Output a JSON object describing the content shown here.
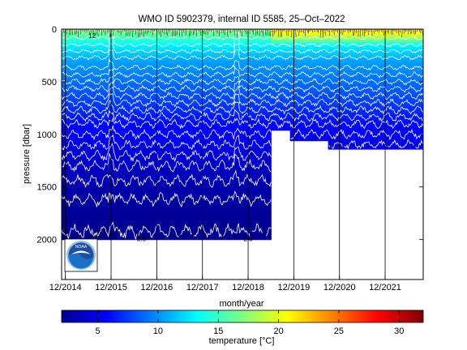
{
  "chart_data": {
    "type": "heatmap",
    "title": "WMO ID 5902379, internal ID 5585, 25–Oct–2022",
    "xlabel": "month/year",
    "ylabel": "pressure [dbar]",
    "colorbar_label": "temperature [°C]",
    "x_ticks": [
      "12/2014",
      "12/2015",
      "12/2016",
      "12/2017",
      "12/2018",
      "12/2019",
      "12/2020",
      "12/2021"
    ],
    "x_range": [
      "2014-11",
      "2022-10"
    ],
    "y_ticks": [
      0,
      500,
      1000,
      1500,
      2000
    ],
    "y_range": [
      0,
      2380
    ],
    "y_reversed": true,
    "colorbar_ticks": [
      5,
      10,
      15,
      20,
      25,
      30
    ],
    "colorbar_range": [
      2,
      32
    ],
    "colormap": "jet",
    "grid": "vertical lines at x ticks",
    "profile_max_depth": [
      {
        "period": "2014-11 to 2019-06",
        "max_pressure": 2000
      },
      {
        "period": "2019-06 to 2019-11",
        "max_pressure": 960
      },
      {
        "period": "2019-11 to 2020-09",
        "max_pressure": 1060
      },
      {
        "period": "2020-09 to 2022-10",
        "max_pressure": 1140
      }
    ],
    "contour_labels": [
      {
        "text": "12",
        "date": "2015-07",
        "pressure": 60
      },
      {
        "text": "2.5",
        "date": "2015-09",
        "pressure": 1950
      },
      {
        "text": "2.5",
        "date": "2016-01",
        "pressure": 1920
      },
      {
        "text": "2.5",
        "date": "2016-08",
        "pressure": 1990
      },
      {
        "text": "2.5",
        "date": "2018-12",
        "pressure": 1990
      },
      {
        "text": "2.5",
        "date": "2015-07",
        "pressure": 1990
      }
    ],
    "temperature_profile": [
      {
        "pressure": 0,
        "temp": 17.5
      },
      {
        "pressure": 150,
        "temp": 13
      },
      {
        "pressure": 300,
        "temp": 10.5
      },
      {
        "pressure": 500,
        "temp": 9
      },
      {
        "pressure": 700,
        "temp": 7.5
      },
      {
        "pressure": 900,
        "temp": 6
      },
      {
        "pressure": 1100,
        "temp": 5
      },
      {
        "pressure": 1300,
        "temp": 4
      },
      {
        "pressure": 1500,
        "temp": 3.3
      },
      {
        "pressure": 1700,
        "temp": 2.8
      },
      {
        "pressure": 2000,
        "temp": 2.4
      }
    ]
  },
  "logo": {
    "text": "NOAA",
    "colors": {
      "outer": "#1f4e9c",
      "inner": "#1b6fc4",
      "bird": "#ffffff",
      "ring": "#8fc3ea"
    }
  },
  "colors": {
    "frame": "#000000",
    "contour": "#ffffff",
    "profile_dark": "#000000"
  }
}
